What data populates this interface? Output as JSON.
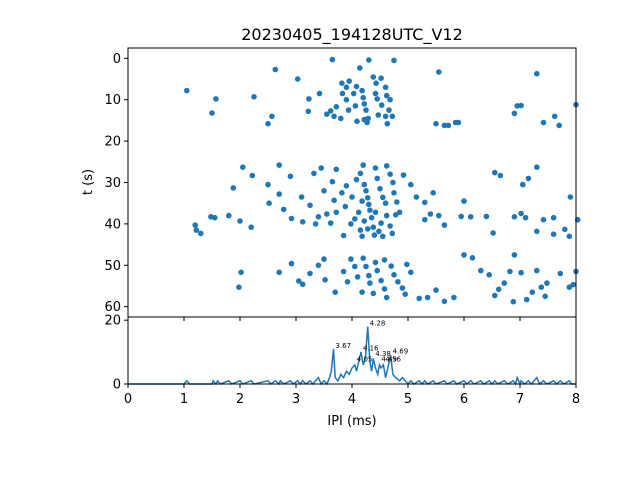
{
  "chart_data": [
    {
      "type": "scatter",
      "title": "20230405_194128UTC_V12",
      "xlabel": "",
      "ylabel": "t (s)",
      "xlim": [
        0,
        8
      ],
      "ylim": [
        62.5,
        -2.5
      ],
      "y_inverted": true,
      "yticks": [
        0,
        10,
        20,
        30,
        40,
        50,
        60
      ],
      "x_tick_labels_shown": false,
      "grid": false,
      "color": "#1f77b4",
      "points": [
        [
          1.05,
          7.8
        ],
        [
          1.5,
          13.2
        ],
        [
          1.57,
          9.8
        ],
        [
          2.25,
          9.3
        ],
        [
          2.63,
          2.7
        ],
        [
          3.03,
          5
        ],
        [
          2.5,
          15.8
        ],
        [
          2.57,
          14
        ],
        [
          3.23,
          9.8
        ],
        [
          3.42,
          8.5
        ],
        [
          3.22,
          12.8
        ],
        [
          3.55,
          13.5
        ],
        [
          3.65,
          0.3
        ],
        [
          3.62,
          12.7
        ],
        [
          3.72,
          11.7
        ],
        [
          3.68,
          14
        ],
        [
          3.82,
          6
        ],
        [
          3.9,
          7
        ],
        [
          3.95,
          5.5
        ],
        [
          3.83,
          8.5
        ],
        [
          3.9,
          10
        ],
        [
          3.94,
          12.5
        ],
        [
          3.8,
          14.5
        ],
        [
          4.03,
          8.5
        ],
        [
          4.06,
          11.5
        ],
        [
          4.09,
          15.2
        ],
        [
          4.14,
          2.3
        ],
        [
          4.08,
          6.8
        ],
        [
          4.18,
          7.8
        ],
        [
          4.2,
          9.5
        ],
        [
          4.22,
          11
        ],
        [
          4.25,
          12.5
        ],
        [
          4.29,
          14.5
        ],
        [
          4.27,
          15.5
        ],
        [
          4.22,
          14.8
        ],
        [
          4.3,
          0.4
        ],
        [
          4.38,
          4.5
        ],
        [
          4.43,
          6
        ],
        [
          4.42,
          8.5
        ],
        [
          4.45,
          9.8
        ],
        [
          4.53,
          11.3
        ],
        [
          4.47,
          13.7
        ],
        [
          4.52,
          4.8
        ],
        [
          4.6,
          7
        ],
        [
          4.68,
          10
        ],
        [
          4.66,
          12.5
        ],
        [
          4.72,
          14
        ],
        [
          4.63,
          15.8
        ],
        [
          4.75,
          0.5
        ],
        [
          4.6,
          14
        ],
        [
          4.62,
          9
        ],
        [
          5.55,
          3.3
        ],
        [
          5.5,
          15.8
        ],
        [
          5.65,
          16.2
        ],
        [
          5.72,
          16.2
        ],
        [
          5.85,
          15.5
        ],
        [
          5.9,
          15.5
        ],
        [
          6.9,
          13.3
        ],
        [
          6.95,
          11.5
        ],
        [
          7.02,
          11.4
        ],
        [
          7.3,
          3.7
        ],
        [
          7.42,
          15.5
        ],
        [
          7.62,
          14
        ],
        [
          7.7,
          16.2
        ],
        [
          8.0,
          11.2
        ],
        [
          2.05,
          26.3
        ],
        [
          2.22,
          28.3
        ],
        [
          1.88,
          31.3
        ],
        [
          2.5,
          30.5
        ],
        [
          2.52,
          35
        ],
        [
          2.7,
          25.8
        ],
        [
          2.7,
          32.8
        ],
        [
          2.78,
          36.5
        ],
        [
          2.9,
          28.5
        ],
        [
          3.1,
          33.5
        ],
        [
          3.25,
          35.5
        ],
        [
          3.32,
          27.8
        ],
        [
          3.5,
          32
        ],
        [
          3.45,
          26.5
        ],
        [
          3.68,
          34.3
        ],
        [
          3.65,
          29.8
        ],
        [
          3.72,
          26.8
        ],
        [
          3.82,
          32.5
        ],
        [
          3.88,
          35.8
        ],
        [
          3.9,
          30.8
        ],
        [
          4.0,
          33.5
        ],
        [
          4.08,
          29.3
        ],
        [
          4.15,
          27.8
        ],
        [
          4.2,
          25.8
        ],
        [
          4.22,
          30.5
        ],
        [
          4.25,
          32
        ],
        [
          4.28,
          33.7
        ],
        [
          4.3,
          35.3
        ],
        [
          4.32,
          36.7
        ],
        [
          4.18,
          34.5
        ],
        [
          4.42,
          26.5
        ],
        [
          4.45,
          29
        ],
        [
          4.5,
          31.5
        ],
        [
          4.55,
          33.6
        ],
        [
          4.6,
          35
        ],
        [
          4.62,
          26
        ],
        [
          4.68,
          28
        ],
        [
          4.73,
          30
        ],
        [
          4.75,
          32.5
        ],
        [
          4.8,
          34.7
        ],
        [
          4.92,
          28.2
        ],
        [
          5.05,
          30.5
        ],
        [
          5.15,
          33.5
        ],
        [
          5.3,
          34.8
        ],
        [
          5.45,
          32.5
        ],
        [
          6.0,
          34.5
        ],
        [
          6.55,
          27.6
        ],
        [
          6.65,
          28.3
        ],
        [
          7.05,
          30.5
        ],
        [
          7.15,
          29
        ],
        [
          7.3,
          26.3
        ],
        [
          7.9,
          33.5
        ],
        [
          1.8,
          38
        ],
        [
          1.48,
          38.3
        ],
        [
          1.55,
          38.5
        ],
        [
          2.0,
          39.3
        ],
        [
          1.2,
          40.3
        ],
        [
          1.22,
          41.5
        ],
        [
          1.3,
          42.3
        ],
        [
          2.2,
          40.8
        ],
        [
          2.92,
          38.7
        ],
        [
          3.12,
          39.5
        ],
        [
          3.35,
          40
        ],
        [
          3.4,
          38.3
        ],
        [
          3.55,
          37.6
        ],
        [
          3.62,
          39.8
        ],
        [
          3.72,
          37.2
        ],
        [
          3.85,
          42.8
        ],
        [
          3.98,
          40
        ],
        [
          4.05,
          38.8
        ],
        [
          4.12,
          37.2
        ],
        [
          4.15,
          41.5
        ],
        [
          4.18,
          43
        ],
        [
          4.22,
          39.3
        ],
        [
          4.28,
          41.2
        ],
        [
          4.35,
          38.5
        ],
        [
          4.38,
          40.8
        ],
        [
          4.4,
          42.7
        ],
        [
          4.42,
          37.2
        ],
        [
          4.48,
          41.8
        ],
        [
          4.52,
          39.8
        ],
        [
          4.55,
          43
        ],
        [
          4.62,
          38
        ],
        [
          4.68,
          40.5
        ],
        [
          4.72,
          42.3
        ],
        [
          4.78,
          37.8
        ],
        [
          4.85,
          37.2
        ],
        [
          5.3,
          39
        ],
        [
          5.4,
          37.6
        ],
        [
          5.55,
          38
        ],
        [
          5.65,
          40.3
        ],
        [
          5.95,
          38.2
        ],
        [
          6.12,
          38.3
        ],
        [
          6.4,
          38.2
        ],
        [
          6.52,
          42.2
        ],
        [
          6.9,
          38.3
        ],
        [
          7.02,
          37.5
        ],
        [
          7.1,
          38.5
        ],
        [
          7.3,
          41.8
        ],
        [
          7.42,
          39
        ],
        [
          7.6,
          38.5
        ],
        [
          7.6,
          42.5
        ],
        [
          7.8,
          41.3
        ],
        [
          7.88,
          43
        ],
        [
          8.03,
          39
        ],
        [
          1.98,
          55.3
        ],
        [
          2.02,
          51.7
        ],
        [
          2.7,
          51.7
        ],
        [
          2.92,
          49.6
        ],
        [
          3.12,
          54.6
        ],
        [
          3.05,
          53.8
        ],
        [
          3.25,
          52
        ],
        [
          3.4,
          50
        ],
        [
          3.5,
          48.5
        ],
        [
          3.52,
          53.5
        ],
        [
          3.7,
          56.5
        ],
        [
          3.85,
          51.5
        ],
        [
          3.92,
          54
        ],
        [
          3.98,
          48.5
        ],
        [
          4.05,
          50.3
        ],
        [
          4.1,
          52.8
        ],
        [
          4.18,
          56.5
        ],
        [
          4.2,
          48.3
        ],
        [
          4.25,
          50.3
        ],
        [
          4.3,
          52.5
        ],
        [
          4.32,
          54.3
        ],
        [
          4.38,
          56.8
        ],
        [
          4.42,
          49.3
        ],
        [
          4.45,
          51.3
        ],
        [
          4.52,
          53.7
        ],
        [
          4.58,
          55.7
        ],
        [
          4.62,
          57.8
        ],
        [
          4.58,
          48.7
        ],
        [
          4.7,
          50.2
        ],
        [
          4.75,
          52.3
        ],
        [
          4.82,
          54
        ],
        [
          4.9,
          55.5
        ],
        [
          4.95,
          57
        ],
        [
          4.98,
          49.8
        ],
        [
          5.05,
          51.7
        ],
        [
          5.2,
          58
        ],
        [
          5.35,
          57.8
        ],
        [
          5.5,
          56
        ],
        [
          5.65,
          58.7
        ],
        [
          5.82,
          57.8
        ],
        [
          6.0,
          47.5
        ],
        [
          6.15,
          48.2
        ],
        [
          6.3,
          51.3
        ],
        [
          6.45,
          52.3
        ],
        [
          6.55,
          57.3
        ],
        [
          6.62,
          55.8
        ],
        [
          6.72,
          54.3
        ],
        [
          6.82,
          51.5
        ],
        [
          6.88,
          58.8
        ],
        [
          6.9,
          47.5
        ],
        [
          7.02,
          51.8
        ],
        [
          7.12,
          58.3
        ],
        [
          7.22,
          56.5
        ],
        [
          7.3,
          51.3
        ],
        [
          7.38,
          55.3
        ],
        [
          7.45,
          57.5
        ],
        [
          7.48,
          54.3
        ],
        [
          7.72,
          52
        ],
        [
          7.88,
          55.3
        ],
        [
          7.95,
          54.7
        ],
        [
          8.0,
          51.5
        ]
      ]
    },
    {
      "type": "line",
      "title": "",
      "xlabel": "IPI (ms)",
      "ylabel": "",
      "xlim": [
        0,
        8
      ],
      "ylim": [
        0,
        21
      ],
      "xticks": [
        0,
        1,
        2,
        3,
        4,
        5,
        6,
        7,
        8
      ],
      "yticks": [
        0,
        20
      ],
      "grid": false,
      "color": "#1f77b4",
      "peak_labels": [
        {
          "x": 3.67,
          "y": 11,
          "text": "3.67"
        },
        {
          "x": 4.28,
          "y": 18,
          "text": "4.28"
        },
        {
          "x": 4.16,
          "y": 10.2,
          "text": "4.16"
        },
        {
          "x": 4.05,
          "y": 6.8,
          "text": "4.05"
        },
        {
          "x": 4.38,
          "y": 8.5,
          "text": "4.38"
        },
        {
          "x": 4.49,
          "y": 6.8,
          "text": "4.49"
        },
        {
          "x": 4.56,
          "y": 6.8,
          "text": "4.56"
        },
        {
          "x": 4.69,
          "y": 9.2,
          "text": "4.69"
        }
      ],
      "points": [
        [
          0,
          0
        ],
        [
          0.5,
          0
        ],
        [
          1.0,
          0
        ],
        [
          1.05,
          1
        ],
        [
          1.1,
          0
        ],
        [
          1.5,
          0
        ],
        [
          1.52,
          1
        ],
        [
          1.57,
          0
        ],
        [
          1.6,
          1
        ],
        [
          1.65,
          0
        ],
        [
          1.8,
          1
        ],
        [
          1.85,
          0
        ],
        [
          2.0,
          1
        ],
        [
          2.05,
          0
        ],
        [
          2.2,
          1
        ],
        [
          2.25,
          0
        ],
        [
          2.5,
          1
        ],
        [
          2.55,
          0
        ],
        [
          2.63,
          1
        ],
        [
          2.7,
          0
        ],
        [
          2.72,
          1
        ],
        [
          2.78,
          0
        ],
        [
          2.9,
          1
        ],
        [
          2.95,
          0
        ],
        [
          3.03,
          1
        ],
        [
          3.08,
          0
        ],
        [
          3.12,
          1
        ],
        [
          3.18,
          0
        ],
        [
          3.25,
          1
        ],
        [
          3.3,
          0
        ],
        [
          3.35,
          1
        ],
        [
          3.4,
          2
        ],
        [
          3.45,
          0
        ],
        [
          3.5,
          1
        ],
        [
          3.55,
          0
        ],
        [
          3.6,
          2
        ],
        [
          3.63,
          4
        ],
        [
          3.67,
          11
        ],
        [
          3.7,
          2
        ],
        [
          3.75,
          1
        ],
        [
          3.8,
          3
        ],
        [
          3.85,
          2
        ],
        [
          3.9,
          4
        ],
        [
          3.95,
          3
        ],
        [
          4.0,
          5
        ],
        [
          4.05,
          6
        ],
        [
          4.08,
          4
        ],
        [
          4.12,
          7
        ],
        [
          4.16,
          10
        ],
        [
          4.2,
          6
        ],
        [
          4.24,
          8
        ],
        [
          4.28,
          18
        ],
        [
          4.32,
          7
        ],
        [
          4.35,
          4
        ],
        [
          4.38,
          8
        ],
        [
          4.42,
          5
        ],
        [
          4.46,
          3
        ],
        [
          4.49,
          6
        ],
        [
          4.52,
          5
        ],
        [
          4.56,
          6
        ],
        [
          4.6,
          2
        ],
        [
          4.64,
          5
        ],
        [
          4.69,
          9
        ],
        [
          4.73,
          3
        ],
        [
          4.78,
          2
        ],
        [
          4.85,
          1
        ],
        [
          4.9,
          2
        ],
        [
          4.95,
          1
        ],
        [
          5.0,
          0
        ],
        [
          5.05,
          1
        ],
        [
          5.1,
          0
        ],
        [
          5.2,
          1
        ],
        [
          5.25,
          0
        ],
        [
          5.3,
          1
        ],
        [
          5.35,
          0
        ],
        [
          5.45,
          1
        ],
        [
          5.5,
          0
        ],
        [
          5.65,
          1
        ],
        [
          5.7,
          0
        ],
        [
          5.82,
          1
        ],
        [
          5.87,
          0
        ],
        [
          6.0,
          1
        ],
        [
          6.05,
          0
        ],
        [
          6.12,
          1
        ],
        [
          6.18,
          0
        ],
        [
          6.3,
          1
        ],
        [
          6.35,
          0
        ],
        [
          6.45,
          1
        ],
        [
          6.5,
          0
        ],
        [
          6.55,
          1
        ],
        [
          6.6,
          0
        ],
        [
          6.72,
          1
        ],
        [
          6.78,
          0
        ],
        [
          6.88,
          1
        ],
        [
          6.92,
          0
        ],
        [
          6.95,
          2
        ],
        [
          7.0,
          0
        ],
        [
          7.02,
          1
        ],
        [
          7.08,
          0
        ],
        [
          7.15,
          1
        ],
        [
          7.2,
          0
        ],
        [
          7.3,
          2
        ],
        [
          7.35,
          0
        ],
        [
          7.42,
          1
        ],
        [
          7.48,
          0
        ],
        [
          7.6,
          1
        ],
        [
          7.65,
          0
        ],
        [
          7.72,
          1
        ],
        [
          7.78,
          0
        ],
        [
          7.88,
          1
        ],
        [
          7.92,
          0
        ],
        [
          8.0,
          0
        ]
      ]
    }
  ]
}
